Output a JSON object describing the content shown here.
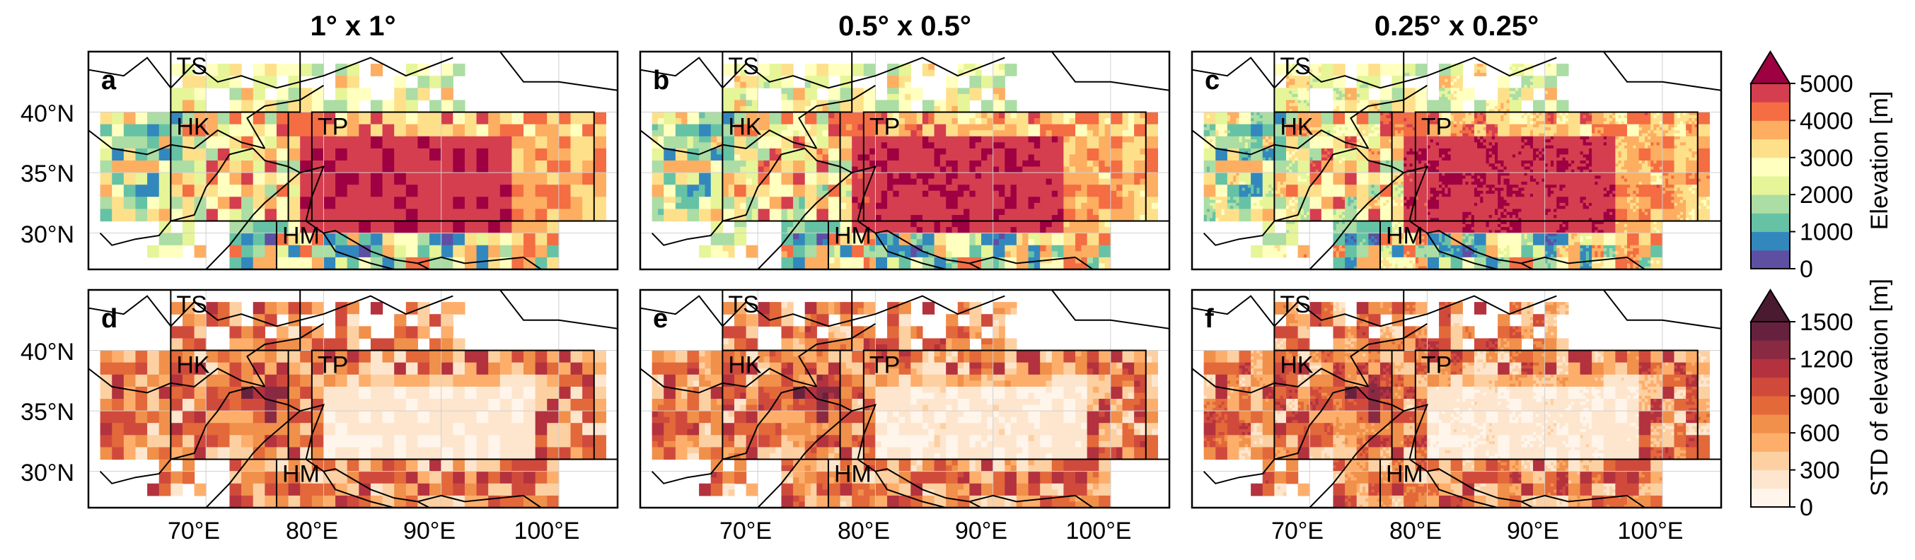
{
  "column_titles": [
    "1° x 1°",
    "0.5° x 0.5°",
    "0.25° x 0.25°"
  ],
  "panel_labels": [
    "a",
    "b",
    "c",
    "d",
    "e",
    "f"
  ],
  "row_variables": [
    "Elevation [m]",
    "STD of elevation [m]"
  ],
  "lat_ticks": [
    "40°N",
    "35°N",
    "30°N"
  ],
  "lon_ticks": [
    "70°E",
    "80°E",
    "90°E",
    "100°E"
  ],
  "lat_values": [
    40,
    35,
    30
  ],
  "lon_values": [
    70,
    80,
    90,
    100
  ],
  "extent": {
    "lon": [
      60,
      105
    ],
    "lat": [
      27,
      45
    ]
  },
  "regions": [
    {
      "name": "TS",
      "lon": [
        67,
        78
      ],
      "lat": [
        40,
        45
      ]
    },
    {
      "name": "HK",
      "lon": [
        67,
        77
      ],
      "lat": [
        31,
        40
      ]
    },
    {
      "name": "TP",
      "lon": [
        79,
        103
      ],
      "lat": [
        31,
        40
      ]
    },
    {
      "name": "HM",
      "lon": [
        76,
        105
      ],
      "lat": [
        27,
        31
      ]
    }
  ],
  "colorbars": [
    {
      "label": "Elevation [m]",
      "ticks": [
        "5000",
        "4000",
        "3000",
        "2000",
        "1000",
        "0"
      ],
      "tick_values": [
        5000,
        4000,
        3000,
        2000,
        1000,
        0
      ],
      "min": 0,
      "max": 5000,
      "extend": "max",
      "colors": [
        "#5e4fa2",
        "#3288bd",
        "#66c2a5",
        "#abdda4",
        "#e6f598",
        "#ffffbf",
        "#fee08b",
        "#fdae61",
        "#f46d43",
        "#d53e4f",
        "#9e0142"
      ]
    },
    {
      "label": "STD of elevation [m]",
      "ticks": [
        "1500",
        "1200",
        "900",
        "600",
        "300",
        "0"
      ],
      "tick_values": [
        1500,
        1200,
        900,
        600,
        300,
        0
      ],
      "min": 0,
      "max": 1500,
      "extend": "max",
      "colors": [
        "#fff5eb",
        "#fee6ce",
        "#fdd0a2",
        "#fdae6b",
        "#f0904a",
        "#e3683a",
        "#d04a3c",
        "#b3323e",
        "#8a2a42",
        "#66213f",
        "#4a1a31"
      ]
    }
  ]
}
